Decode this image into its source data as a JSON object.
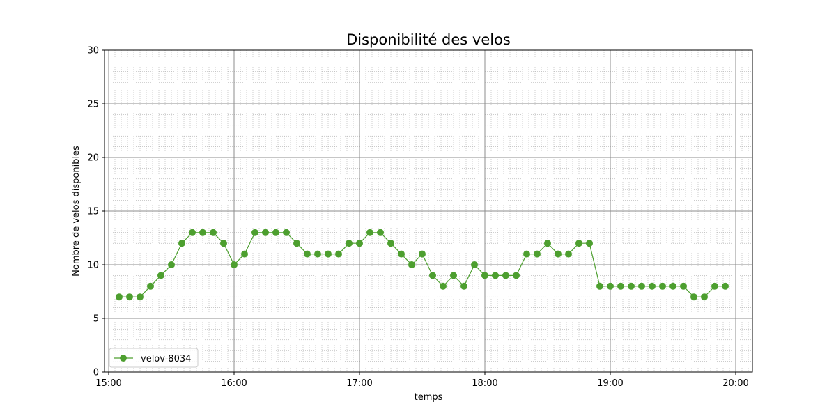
{
  "chart_data": {
    "type": "line",
    "title": "Disponibilité des velos",
    "xlabel": "temps",
    "ylabel": "Nombre de velos disponibles",
    "x_axis": "time",
    "xlim": [
      "14:58",
      "20:08"
    ],
    "ylim": [
      0,
      30
    ],
    "x_ticks": [
      "15:00",
      "16:00",
      "17:00",
      "18:00",
      "19:00",
      "20:00"
    ],
    "y_ticks": [
      0,
      5,
      10,
      15,
      20,
      25,
      30
    ],
    "grid": {
      "major": true,
      "minor": true,
      "minor_style": "dotted"
    },
    "legend": {
      "position": "lower-left"
    },
    "series": [
      {
        "name": "velov-8034",
        "color": "#4d9f2f",
        "marker": "circle",
        "x": [
          "15:05",
          "15:10",
          "15:15",
          "15:20",
          "15:25",
          "15:30",
          "15:35",
          "15:40",
          "15:45",
          "15:50",
          "15:55",
          "16:00",
          "16:05",
          "16:10",
          "16:15",
          "16:20",
          "16:25",
          "16:30",
          "16:35",
          "16:40",
          "16:45",
          "16:50",
          "16:55",
          "17:00",
          "17:05",
          "17:10",
          "17:15",
          "17:20",
          "17:25",
          "17:30",
          "17:35",
          "17:40",
          "17:45",
          "17:50",
          "17:55",
          "18:00",
          "18:05",
          "18:10",
          "18:15",
          "18:20",
          "18:25",
          "18:30",
          "18:35",
          "18:40",
          "18:45",
          "18:50",
          "18:55",
          "19:00",
          "19:05",
          "19:10",
          "19:15",
          "19:20",
          "19:25",
          "19:30",
          "19:35",
          "19:40",
          "19:45",
          "19:50",
          "19:55"
        ],
        "values": [
          7,
          7,
          7,
          8,
          9,
          10,
          12,
          13,
          13,
          13,
          12,
          10,
          11,
          13,
          13,
          13,
          13,
          12,
          11,
          11,
          11,
          11,
          12,
          12,
          13,
          13,
          12,
          11,
          10,
          11,
          9,
          8,
          9,
          8,
          10,
          9,
          9,
          9,
          9,
          11,
          11,
          12,
          11,
          11,
          12,
          12,
          8,
          8,
          8,
          8,
          8,
          8,
          8,
          8,
          8,
          7,
          7,
          8,
          8
        ]
      }
    ]
  }
}
